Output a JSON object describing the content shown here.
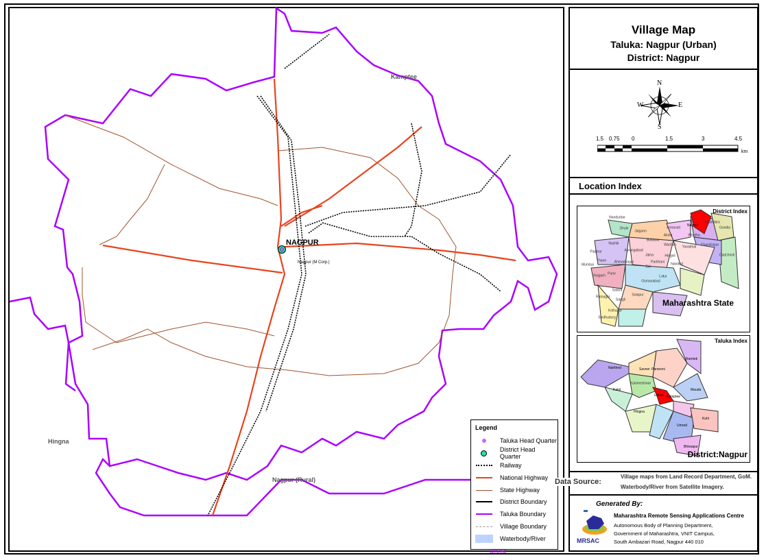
{
  "title_block": {
    "title": "Village Map",
    "taluka": "Taluka: Nagpur (Urban)",
    "district": "District: Nagpur"
  },
  "compass": {
    "n": "N",
    "s": "S",
    "e": "E",
    "w": "W"
  },
  "scale_bar": {
    "ticks": [
      "1.5",
      "0.75",
      "0",
      "1.5",
      "3",
      "4.5"
    ],
    "unit": "km"
  },
  "location_index": {
    "heading": "Location Index",
    "district_index": {
      "label": "District Index",
      "caption": "Maharashtra State",
      "highlight_color": "#ff0000",
      "districts": [
        "Nandurbar",
        "Dhule",
        "Jalgaon",
        "Amravati",
        "Nagpur",
        "Bhandara",
        "Gondia",
        "Nashik",
        "Buldana",
        "Akola",
        "Wardha",
        "Washim",
        "Yavatmal",
        "Chandrapur",
        "Gadchiroli",
        "Palghar",
        "Aurangabad",
        "Jalna",
        "Hingoli",
        "Thane",
        "Mumbai",
        "Ahmadnagar",
        "Parbhani",
        "Nanded",
        "Bid",
        "Pune",
        "Raigarh",
        "Latur",
        "Osmanabad",
        "Solapur",
        "Satara",
        "Ratnagiri",
        "Sangli",
        "Kolhapur",
        "Sindhudurg"
      ]
    },
    "taluka_index": {
      "label": "Taluka Index",
      "caption": "District:Nagpur",
      "highlight_color": "#ff0000",
      "talukas": [
        "Narkhed",
        "Savner",
        "Parseoni",
        "Ramtek",
        "Kalameshwar",
        "Katol",
        "Nagpur (Rural)",
        "Nagpur (Urban)",
        "Kamptee",
        "Mauda",
        "Hingna",
        "Nagpur (Rural)",
        "Kuhi",
        "Umred",
        "Bhiwapur"
      ]
    }
  },
  "data_source": {
    "label": "Data Source:",
    "line1": "Village maps from Land Record Department, GoM.",
    "line2": "Waterbody/River from Satellite Imagery."
  },
  "generated_by": {
    "label": "Generated By:",
    "org": "Maharashtra Remote Sensing Applications Centre",
    "line1": "Autonomous Body of Planning Department,",
    "line2": "Government of Maharashtra, VNIT Campus,",
    "line3": "South Ambazari Road, Nagpur 440 010",
    "logo_text": "MRSAC"
  },
  "map": {
    "neighbors": {
      "kamptee": "Kamptee",
      "hingna": "Hingna",
      "nagpur_rural": "Nagpur (Rural)",
      "umred": "Umred"
    },
    "hq_label": "NAGPUR",
    "village_label": "Nagpur (M Corp.)",
    "colors": {
      "taluka_boundary": "#aa00ff",
      "national_highway": "#e8431c",
      "state_highway": "#a0522d",
      "railway": "#000000",
      "district_hq": "#21e0b0",
      "taluka_hq": "#cc66ff",
      "waterbody": "#bed2ff"
    }
  },
  "legend": {
    "title": "Legend",
    "items": [
      {
        "label": "Taluka Head Quarter",
        "symbol": "taluka-hq-dot"
      },
      {
        "label": "District Head Quarter",
        "symbol": "district-hq-circle"
      },
      {
        "label": "Railway",
        "symbol": "railway-line"
      },
      {
        "label": "National Highway",
        "symbol": "national-highway-line"
      },
      {
        "label": "State Highway",
        "symbol": "state-highway-line"
      },
      {
        "label": "District Boundary",
        "symbol": "district-boundary-line"
      },
      {
        "label": "Taluka Boundary",
        "symbol": "taluka-boundary-line"
      },
      {
        "label": "Village Boundary",
        "symbol": "village-boundary-line"
      },
      {
        "label": "Waterbody/River",
        "symbol": "waterbody-swatch"
      }
    ]
  }
}
